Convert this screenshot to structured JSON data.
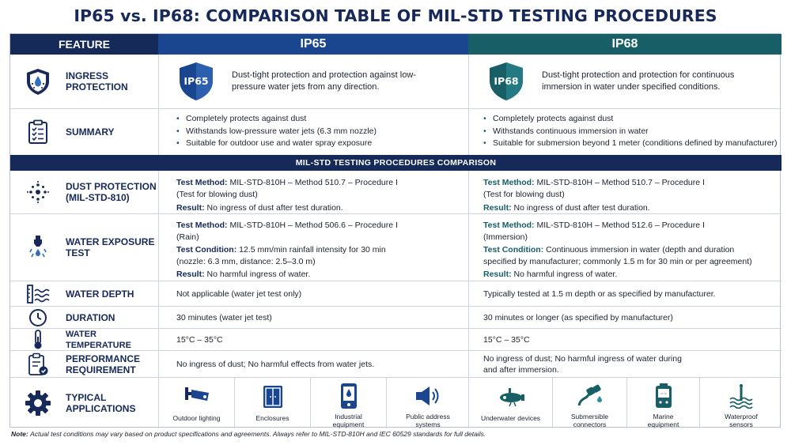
{
  "title": "IP65 vs. IP68: COMPARISON TABLE OF MIL-STD TESTING PROCEDURES",
  "headers": {
    "feature": "FEATURE",
    "ip65": "IP65",
    "ip68": "IP68"
  },
  "ingress": {
    "label1": "INGRESS",
    "label2": "PROTECTION",
    "ip65_badge": "IP65",
    "ip65_text": "Dust-tight protection and protection against low-pressure water jets from any direction.",
    "ip68_badge": "IP68",
    "ip68_text": "Dust-tight protection and protection for continuous immersion in water under specified conditions."
  },
  "summary": {
    "label": "SUMMARY",
    "ip65": [
      "Completely protects against dust",
      "Withstands low-pressure water jets (6.3 mm nozzle)",
      "Suitable for outdoor use and water spray exposure"
    ],
    "ip68": [
      "Completely protects against dust",
      "Withstands continuous immersion in water",
      "Suitable for submersion beyond 1 meter (conditions defined by manufacturer)"
    ]
  },
  "section_title": "MIL-STD TESTING PROCEDURES COMPARISON",
  "dust": {
    "label1": "DUST PROTECTION",
    "label2": "(MIL-STD-810)",
    "method_label": "Test Method:",
    "result_label": "Result:",
    "ip65_method": "MIL-STD-810H – Method 510.7 – Procedure I",
    "ip65_method2": "(Test for blowing dust)",
    "ip65_result": "No ingress of dust after test duration.",
    "ip68_method": "MIL-STD-810H – Method 510.7 – Procedure I",
    "ip68_method2": "(Test for blowing dust)",
    "ip68_result": "No ingress of dust after test duration."
  },
  "water": {
    "label1": "WATER EXPOSURE",
    "label2": "TEST",
    "method_label": "Test Method:",
    "condition_label": "Test Condition:",
    "result_label": "Result:",
    "ip65_method": "MIL-STD-810H – Method 506.6 – Procedure I",
    "ip65_method2": "(Rain)",
    "ip65_cond": "12.5 mm/min rainfall intensity for 30 min",
    "ip65_cond2": "(nozzle: 6.3 mm, distance: 2.5–3.0 m)",
    "ip65_result": "No harmful ingress of water.",
    "ip68_method": "MIL-STD-810H – Method 512.6 – Procedure I",
    "ip68_method2": "(Immersion)",
    "ip68_cond": "Continuous immersion in water (depth and duration",
    "ip68_cond2": "specified by manufacturer; commonly 1.5 m for 30 min or per agreement)",
    "ip68_result": "No harmful ingress of water."
  },
  "depth": {
    "label": "WATER DEPTH",
    "ip65": "Not applicable (water jet test only)",
    "ip68": "Typically tested at 1.5 m depth or as specified by manufacturer."
  },
  "duration": {
    "label": "DURATION",
    "ip65": "30 minutes (water jet test)",
    "ip68": "30 minutes or longer (as specified by manufacturer)"
  },
  "temperature": {
    "label": "WATER TEMPERATURE",
    "ip65": "15°C – 35°C",
    "ip68": "15°C – 35°C"
  },
  "performance": {
    "label1": "PERFORMANCE",
    "label2": "REQUIREMENT",
    "ip65": "No ingress of dust; No harmful effects from water jets.",
    "ip68a": "No ingress of dust; No harmful ingress of water during",
    "ip68b": "and after immersion."
  },
  "applications": {
    "label1": "TYPICAL",
    "label2": "APPLICATIONS",
    "ip65": [
      {
        "l1": "Outdoor lighting",
        "l2": ""
      },
      {
        "l1": "Enclosures",
        "l2": ""
      },
      {
        "l1": "Industrial",
        "l2": "equipment"
      },
      {
        "l1": "Public address",
        "l2": "systems"
      }
    ],
    "ip68": [
      {
        "l1": "Underwater devices",
        "l2": ""
      },
      {
        "l1": "Submersible",
        "l2": "connectors"
      },
      {
        "l1": "Marine",
        "l2": "equipment"
      },
      {
        "l1": "Waterproof",
        "l2": "sensors"
      }
    ]
  },
  "note": {
    "label": "Note:",
    "text": "Actual test conditions may vary based on product specifications and agreements. Always refer to MIL-STD-810H and IEC 60529 standards for full details."
  },
  "colors": {
    "navy": "#162a5a",
    "blue": "#1a4690",
    "teal": "#175e66"
  }
}
